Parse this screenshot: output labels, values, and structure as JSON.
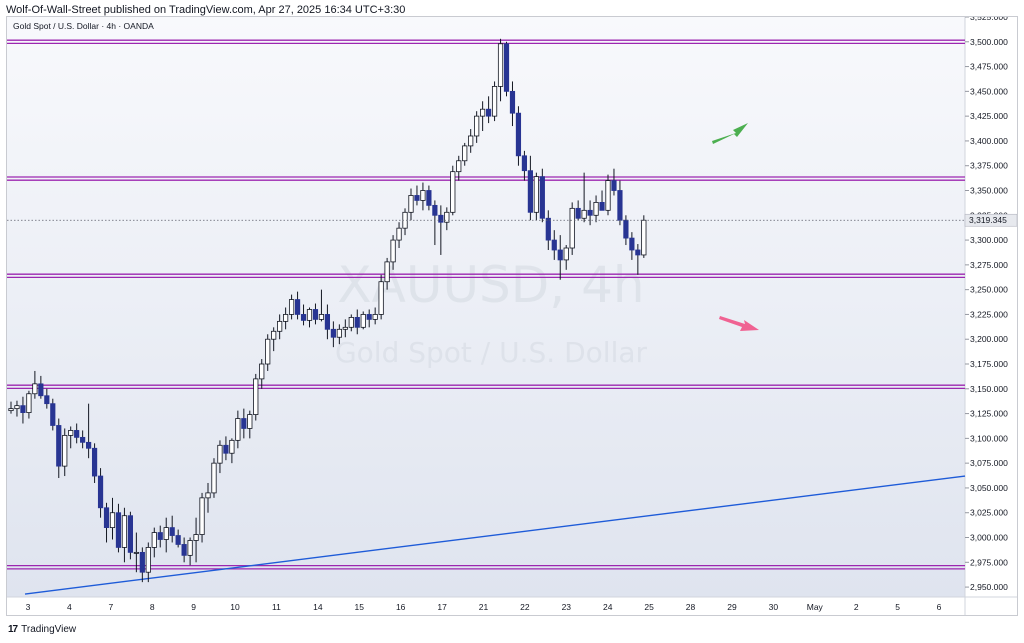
{
  "caption": "Wolf-Of-Wall-Street published on TradingView.com, Apr 27, 2025 16:34 UTC+3:30",
  "footer": {
    "brand": "TradingView",
    "logo_mark": "17"
  },
  "chart_data": {
    "type": "candlestick",
    "symbol_line": "Gold Spot / U.S. Dollar · 4h · OANDA",
    "watermark": {
      "symbol": "XAUUSD, 4h",
      "description": "Gold Spot / U.S. Dollar"
    },
    "last_price": "3,319.345",
    "ylim": [
      2940,
      3525
    ],
    "y_ticks": [
      "2,950.000",
      "2,975.000",
      "3,000.000",
      "3,025.000",
      "3,050.000",
      "3,075.000",
      "3,100.000",
      "3,125.000",
      "3,150.000",
      "3,175.000",
      "3,200.000",
      "3,225.000",
      "3,250.000",
      "3,275.000",
      "3,300.000",
      "3,325.000",
      "3,350.000",
      "3,375.000",
      "3,400.000",
      "3,425.000",
      "3,450.000",
      "3,475.000",
      "3,500.000",
      "3,525.000"
    ],
    "y_tick_values": [
      2950,
      2975,
      3000,
      3025,
      3050,
      3075,
      3100,
      3125,
      3150,
      3175,
      3200,
      3225,
      3250,
      3275,
      3300,
      3325,
      3350,
      3375,
      3400,
      3425,
      3450,
      3475,
      3500,
      3525
    ],
    "x_ticks": [
      "3",
      "4",
      "7",
      "8",
      "9",
      "10",
      "11",
      "14",
      "15",
      "16",
      "17",
      "21",
      "22",
      "23",
      "24",
      "25",
      "28",
      "29",
      "30",
      "May",
      "2",
      "5",
      "6"
    ],
    "horizontal_levels": [
      2970,
      3152,
      3264,
      3362,
      3500
    ],
    "trendline": {
      "from": {
        "bar": 0,
        "price": 2943
      },
      "to": {
        "bar": 160,
        "price": 3062
      }
    },
    "arrows": [
      {
        "direction": "up",
        "color": "#4caf50"
      },
      {
        "direction": "down",
        "color": "#f06292"
      }
    ],
    "colors": {
      "up_body": "#ffffff",
      "down_body": "#283593",
      "wick": "#131722",
      "level": "#9c27b0",
      "trendline": "#1e5bd8",
      "background": "#eef1f7"
    },
    "candles": [
      [
        3128,
        3137,
        3125,
        3130
      ],
      [
        3130,
        3138,
        3122,
        3133
      ],
      [
        3133,
        3142,
        3115,
        3126
      ],
      [
        3126,
        3148,
        3120,
        3145
      ],
      [
        3145,
        3168,
        3140,
        3155
      ],
      [
        3155,
        3163,
        3140,
        3143
      ],
      [
        3143,
        3150,
        3130,
        3135
      ],
      [
        3135,
        3140,
        3108,
        3113
      ],
      [
        3113,
        3120,
        3060,
        3072
      ],
      [
        3072,
        3110,
        3062,
        3103
      ],
      [
        3103,
        3112,
        3090,
        3108
      ],
      [
        3108,
        3115,
        3095,
        3101
      ],
      [
        3101,
        3108,
        3090,
        3096
      ],
      [
        3096,
        3135,
        3080,
        3090
      ],
      [
        3090,
        3095,
        3055,
        3062
      ],
      [
        3062,
        3070,
        3020,
        3030
      ],
      [
        3030,
        3035,
        2995,
        3010
      ],
      [
        3010,
        3040,
        2998,
        3025
      ],
      [
        3025,
        3034,
        2985,
        2990
      ],
      [
        2990,
        3030,
        2975,
        3022
      ],
      [
        3022,
        3026,
        2978,
        2985
      ],
      [
        2985,
        3005,
        2965,
        2985
      ],
      [
        2985,
        2990,
        2955,
        2965
      ],
      [
        2965,
        2995,
        2955,
        2990
      ],
      [
        2990,
        3010,
        2980,
        3005
      ],
      [
        3005,
        3012,
        2990,
        2998
      ],
      [
        2998,
        3020,
        2985,
        3010
      ],
      [
        3010,
        3022,
        2995,
        3002
      ],
      [
        3002,
        3008,
        2990,
        2993
      ],
      [
        2993,
        3000,
        2975,
        2982
      ],
      [
        2982,
        3000,
        2972,
        2997
      ],
      [
        2997,
        3020,
        2975,
        3003
      ],
      [
        3003,
        3045,
        2995,
        3040
      ],
      [
        3040,
        3055,
        3025,
        3045
      ],
      [
        3045,
        3080,
        3040,
        3075
      ],
      [
        3075,
        3098,
        3065,
        3093
      ],
      [
        3093,
        3102,
        3078,
        3085
      ],
      [
        3085,
        3100,
        3075,
        3098
      ],
      [
        3098,
        3128,
        3090,
        3120
      ],
      [
        3120,
        3130,
        3100,
        3110
      ],
      [
        3110,
        3128,
        3100,
        3124
      ],
      [
        3124,
        3165,
        3118,
        3160
      ],
      [
        3160,
        3180,
        3150,
        3175
      ],
      [
        3175,
        3205,
        3168,
        3200
      ],
      [
        3200,
        3212,
        3188,
        3208
      ],
      [
        3208,
        3225,
        3200,
        3218
      ],
      [
        3218,
        3232,
        3210,
        3225
      ],
      [
        3225,
        3245,
        3220,
        3240
      ],
      [
        3240,
        3248,
        3220,
        3225
      ],
      [
        3225,
        3235,
        3214,
        3219
      ],
      [
        3219,
        3232,
        3212,
        3230
      ],
      [
        3230,
        3236,
        3215,
        3220
      ],
      [
        3220,
        3250,
        3218,
        3225
      ],
      [
        3225,
        3235,
        3200,
        3210
      ],
      [
        3210,
        3218,
        3192,
        3202
      ],
      [
        3202,
        3215,
        3195,
        3210
      ],
      [
        3210,
        3220,
        3202,
        3212
      ],
      [
        3212,
        3225,
        3208,
        3222
      ],
      [
        3222,
        3230,
        3205,
        3212
      ],
      [
        3212,
        3228,
        3210,
        3225
      ],
      [
        3225,
        3230,
        3212,
        3220
      ],
      [
        3220,
        3232,
        3215,
        3225
      ],
      [
        3225,
        3265,
        3220,
        3258
      ],
      [
        3258,
        3282,
        3250,
        3278
      ],
      [
        3278,
        3305,
        3270,
        3300
      ],
      [
        3300,
        3318,
        3292,
        3312
      ],
      [
        3312,
        3332,
        3305,
        3328
      ],
      [
        3328,
        3352,
        3320,
        3345
      ],
      [
        3345,
        3355,
        3335,
        3340
      ],
      [
        3340,
        3358,
        3330,
        3350
      ],
      [
        3350,
        3355,
        3330,
        3335
      ],
      [
        3335,
        3340,
        3295,
        3325
      ],
      [
        3325,
        3335,
        3285,
        3318
      ],
      [
        3318,
        3333,
        3310,
        3328
      ],
      [
        3328,
        3375,
        3325,
        3369
      ],
      [
        3369,
        3385,
        3360,
        3380
      ],
      [
        3380,
        3398,
        3375,
        3395
      ],
      [
        3395,
        3412,
        3388,
        3405
      ],
      [
        3405,
        3430,
        3398,
        3425
      ],
      [
        3425,
        3440,
        3410,
        3432
      ],
      [
        3432,
        3445,
        3418,
        3425
      ],
      [
        3425,
        3460,
        3420,
        3455
      ],
      [
        3455,
        3503,
        3440,
        3498
      ],
      [
        3498,
        3500,
        3445,
        3450
      ],
      [
        3450,
        3460,
        3415,
        3428
      ],
      [
        3428,
        3435,
        3375,
        3385
      ],
      [
        3385,
        3390,
        3360,
        3370
      ],
      [
        3370,
        3385,
        3320,
        3328
      ],
      [
        3328,
        3368,
        3320,
        3364
      ],
      [
        3364,
        3372,
        3318,
        3322
      ],
      [
        3322,
        3330,
        3290,
        3300
      ],
      [
        3300,
        3310,
        3280,
        3290
      ],
      [
        3290,
        3305,
        3260,
        3280
      ],
      [
        3280,
        3295,
        3270,
        3292
      ],
      [
        3292,
        3338,
        3285,
        3332
      ],
      [
        3332,
        3340,
        3320,
        3322
      ],
      [
        3322,
        3368,
        3318,
        3330
      ],
      [
        3330,
        3340,
        3315,
        3325
      ],
      [
        3325,
        3345,
        3318,
        3338
      ],
      [
        3338,
        3350,
        3330,
        3330
      ],
      [
        3330,
        3366,
        3325,
        3360
      ],
      [
        3360,
        3372,
        3345,
        3350
      ],
      [
        3350,
        3360,
        3315,
        3320
      ],
      [
        3320,
        3325,
        3295,
        3302
      ],
      [
        3302,
        3308,
        3280,
        3290
      ],
      [
        3290,
        3296,
        3265,
        3285
      ],
      [
        3285,
        3325,
        3282,
        3320
      ]
    ]
  }
}
